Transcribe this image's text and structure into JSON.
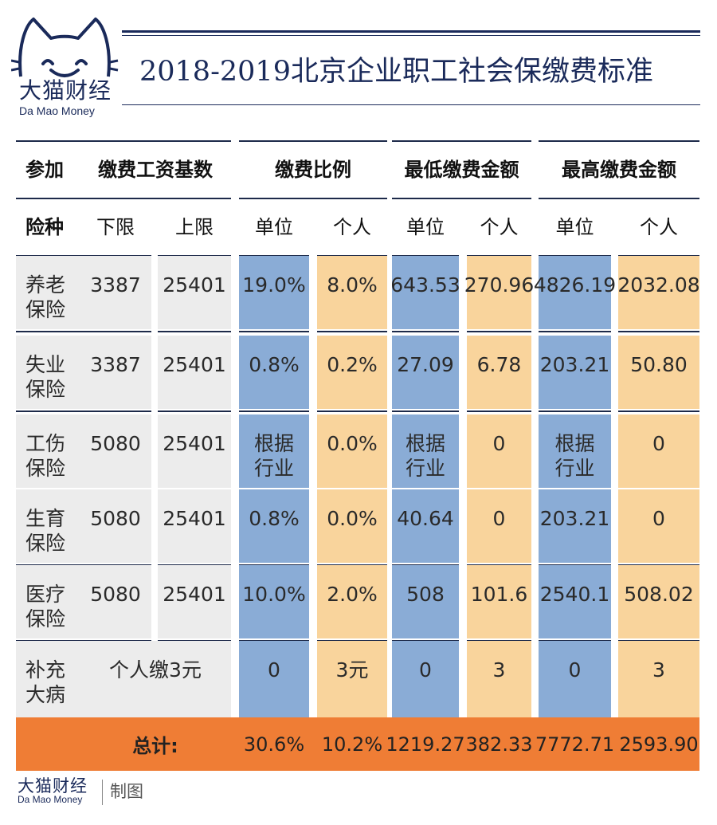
{
  "brand": {
    "name_cn": "大猫财经",
    "name_en": "Da Mao Money"
  },
  "title": "2018-2019北京企业职工社会保缴费标准",
  "colors": {
    "navy": "#1a2a5a",
    "gray": "#ececec",
    "blue": "#8aacd6",
    "yellow": "#f9d49c",
    "orange": "#ef7d35"
  },
  "chart_data": {
    "type": "table",
    "title": "2018-2019北京企业职工社会保缴费标准",
    "header_top": [
      "参加",
      "缴费工资基数",
      "缴费比例",
      "最低缴费金额",
      "最高缴费金额"
    ],
    "header_sub": [
      "险种",
      "下限",
      "上限",
      "单位",
      "个人",
      "单位",
      "个人",
      "单位",
      "个人"
    ],
    "rows": [
      {
        "label": "养老\n保险",
        "cells": [
          "3387",
          "25401",
          "19.0%",
          "8.0%",
          "643.53",
          "270.96",
          "4826.19",
          "2032.08"
        ]
      },
      {
        "label": "失业\n保险",
        "cells": [
          "3387",
          "25401",
          "0.8%",
          "0.2%",
          "27.09",
          "6.78",
          "203.21",
          "50.80"
        ]
      },
      {
        "label": "工伤\n保险",
        "cells": [
          "5080",
          "25401",
          "根据\n行业",
          "0.0%",
          "根据\n行业",
          "0",
          "根据\n行业",
          "0"
        ]
      },
      {
        "label": "生育\n保险",
        "cells": [
          "5080",
          "25401",
          "0.8%",
          "0.0%",
          "40.64",
          "0",
          "203.21",
          "0"
        ]
      },
      {
        "label": "医疗\n保险",
        "cells": [
          "5080",
          "25401",
          "10.0%",
          "2.0%",
          "508",
          "101.6",
          "2540.1",
          "508.02"
        ]
      },
      {
        "label": "补充\n大病",
        "base_merged": "个人缴3元",
        "cells": [
          "0",
          "3元",
          "0",
          "3",
          "0",
          "3"
        ]
      }
    ],
    "total": {
      "label": "总计:",
      "cells": [
        "30.6%",
        "10.2%",
        "1219.27",
        "382.33",
        "7772.71",
        "2593.90"
      ]
    }
  },
  "footer": {
    "brand_cn": "大猫财经",
    "brand_en": "Da Mao Money",
    "made_by": "制图"
  }
}
